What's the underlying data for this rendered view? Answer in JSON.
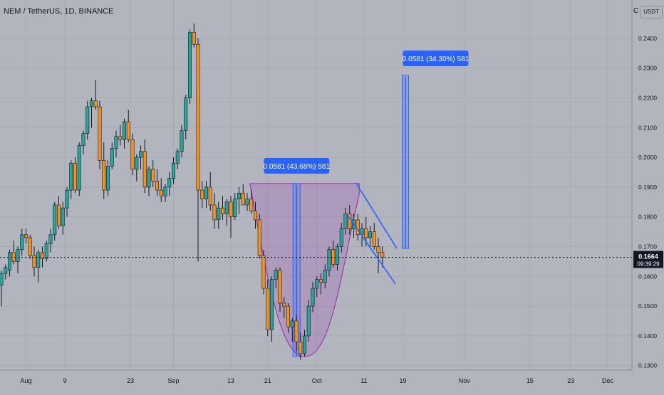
{
  "header": {
    "symbol_title": "NEM / TetherUS, 1D, BINANCE",
    "currency": "USDT"
  },
  "chart_data": {
    "type": "candlestick",
    "title": "NEM / TetherUS, 1D, BINANCE",
    "y_ticks": [
      "0.2400",
      "0.2300",
      "0.2200",
      "0.2100",
      "0.2000",
      "0.1900",
      "0.1800",
      "0.1700",
      "0.1600",
      "0.1500",
      "0.1400",
      "0.1300"
    ],
    "x_ticks": [
      "Aug",
      "9",
      "23",
      "Sep",
      "13",
      "21",
      "Oct",
      "11",
      "19",
      "Nov",
      "15",
      "23",
      "Dec"
    ],
    "ylim": [
      0.1285,
      0.2505
    ],
    "current_price": "0.1664",
    "countdown": "09:39:29",
    "colors": {
      "up": "#26a69a",
      "down": "#f7931a",
      "measure": "#2962ff",
      "pattern": "#9c27b0",
      "wedge": "#2962ff"
    },
    "candles": [
      [
        0.157,
        0.162,
        0.15,
        0.161
      ],
      [
        0.161,
        0.164,
        0.159,
        0.163
      ],
      [
        0.162,
        0.169,
        0.16,
        0.168
      ],
      [
        0.168,
        0.172,
        0.164,
        0.165
      ],
      [
        0.165,
        0.17,
        0.161,
        0.169
      ],
      [
        0.169,
        0.176,
        0.167,
        0.174
      ],
      [
        0.174,
        0.176,
        0.171,
        0.173
      ],
      [
        0.173,
        0.174,
        0.166,
        0.167
      ],
      [
        0.167,
        0.17,
        0.16,
        0.163
      ],
      [
        0.163,
        0.169,
        0.158,
        0.168
      ],
      [
        0.168,
        0.17,
        0.163,
        0.166
      ],
      [
        0.166,
        0.172,
        0.165,
        0.171
      ],
      [
        0.171,
        0.176,
        0.168,
        0.174
      ],
      [
        0.174,
        0.185,
        0.172,
        0.184
      ],
      [
        0.184,
        0.187,
        0.176,
        0.177
      ],
      [
        0.177,
        0.185,
        0.174,
        0.183
      ],
      [
        0.183,
        0.19,
        0.18,
        0.189
      ],
      [
        0.189,
        0.199,
        0.186,
        0.198
      ],
      [
        0.198,
        0.2,
        0.188,
        0.189
      ],
      [
        0.189,
        0.205,
        0.187,
        0.204
      ],
      [
        0.204,
        0.209,
        0.201,
        0.208
      ],
      [
        0.208,
        0.219,
        0.206,
        0.217
      ],
      [
        0.217,
        0.22,
        0.21,
        0.219
      ],
      [
        0.219,
        0.226,
        0.216,
        0.217
      ],
      [
        0.217,
        0.219,
        0.196,
        0.199
      ],
      [
        0.199,
        0.205,
        0.186,
        0.189
      ],
      [
        0.189,
        0.199,
        0.187,
        0.197
      ],
      [
        0.197,
        0.205,
        0.196,
        0.203
      ],
      [
        0.203,
        0.209,
        0.2,
        0.207
      ],
      [
        0.207,
        0.211,
        0.204,
        0.206
      ],
      [
        0.206,
        0.213,
        0.203,
        0.212
      ],
      [
        0.212,
        0.216,
        0.205,
        0.206
      ],
      [
        0.206,
        0.208,
        0.194,
        0.196
      ],
      [
        0.196,
        0.201,
        0.192,
        0.2
      ],
      [
        0.2,
        0.204,
        0.196,
        0.202
      ],
      [
        0.202,
        0.206,
        0.188,
        0.19
      ],
      [
        0.19,
        0.197,
        0.187,
        0.196
      ],
      [
        0.196,
        0.199,
        0.19,
        0.192
      ],
      [
        0.192,
        0.196,
        0.187,
        0.189
      ],
      [
        0.189,
        0.193,
        0.185,
        0.187
      ],
      [
        0.187,
        0.191,
        0.185,
        0.19
      ],
      [
        0.19,
        0.195,
        0.187,
        0.193
      ],
      [
        0.193,
        0.2,
        0.191,
        0.198
      ],
      [
        0.198,
        0.203,
        0.196,
        0.202
      ],
      [
        0.202,
        0.211,
        0.2,
        0.209
      ],
      [
        0.209,
        0.221,
        0.206,
        0.22
      ],
      [
        0.22,
        0.243,
        0.218,
        0.242
      ],
      [
        0.242,
        0.245,
        0.237,
        0.238
      ],
      [
        0.238,
        0.24,
        0.165,
        0.189
      ],
      [
        0.189,
        0.192,
        0.183,
        0.186
      ],
      [
        0.186,
        0.192,
        0.183,
        0.19
      ],
      [
        0.19,
        0.195,
        0.182,
        0.184
      ],
      [
        0.184,
        0.188,
        0.176,
        0.179
      ],
      [
        0.179,
        0.185,
        0.176,
        0.183
      ],
      [
        0.183,
        0.187,
        0.179,
        0.181
      ],
      [
        0.181,
        0.186,
        0.177,
        0.185
      ],
      [
        0.185,
        0.187,
        0.173,
        0.18
      ],
      [
        0.18,
        0.188,
        0.179,
        0.186
      ],
      [
        0.186,
        0.19,
        0.181,
        0.188
      ],
      [
        0.188,
        0.191,
        0.184,
        0.184
      ],
      [
        0.184,
        0.188,
        0.182,
        0.186
      ],
      [
        0.186,
        0.189,
        0.181,
        0.182
      ],
      [
        0.182,
        0.185,
        0.176,
        0.179
      ],
      [
        0.179,
        0.181,
        0.166,
        0.167
      ],
      [
        0.167,
        0.169,
        0.154,
        0.156
      ],
      [
        0.156,
        0.159,
        0.14,
        0.142
      ],
      [
        0.142,
        0.16,
        0.138,
        0.159
      ],
      [
        0.159,
        0.163,
        0.156,
        0.162
      ],
      [
        0.162,
        0.163,
        0.148,
        0.151
      ],
      [
        0.151,
        0.153,
        0.146,
        0.15
      ],
      [
        0.15,
        0.151,
        0.141,
        0.143
      ],
      [
        0.143,
        0.146,
        0.138,
        0.145
      ],
      [
        0.145,
        0.147,
        0.135,
        0.138
      ],
      [
        0.138,
        0.141,
        0.132,
        0.134
      ],
      [
        0.134,
        0.142,
        0.133,
        0.14
      ],
      [
        0.14,
        0.152,
        0.138,
        0.15
      ],
      [
        0.15,
        0.158,
        0.148,
        0.156
      ],
      [
        0.156,
        0.16,
        0.153,
        0.159
      ],
      [
        0.159,
        0.161,
        0.154,
        0.158
      ],
      [
        0.158,
        0.164,
        0.156,
        0.162
      ],
      [
        0.162,
        0.17,
        0.16,
        0.169
      ],
      [
        0.169,
        0.172,
        0.163,
        0.164
      ],
      [
        0.164,
        0.171,
        0.162,
        0.17
      ],
      [
        0.17,
        0.178,
        0.168,
        0.176
      ],
      [
        0.176,
        0.183,
        0.174,
        0.181
      ],
      [
        0.181,
        0.184,
        0.174,
        0.176
      ],
      [
        0.176,
        0.181,
        0.173,
        0.179
      ],
      [
        0.179,
        0.181,
        0.172,
        0.174
      ],
      [
        0.174,
        0.178,
        0.17,
        0.176
      ],
      [
        0.176,
        0.18,
        0.17,
        0.173
      ],
      [
        0.173,
        0.177,
        0.17,
        0.175
      ],
      [
        0.175,
        0.178,
        0.169,
        0.17
      ],
      [
        0.17,
        0.173,
        0.161,
        0.168
      ],
      [
        0.168,
        0.17,
        0.163,
        0.1664
      ]
    ],
    "measurements": [
      {
        "label": "0.0581 (43.68%) 581",
        "from": 0.1331,
        "to": 0.1912
      },
      {
        "label": "0.0581 (34.30%) 581",
        "from": 0.1694,
        "to": 0.2275
      }
    ],
    "cup_pattern": {
      "rim": 0.1912,
      "bottom": 0.1331
    },
    "wedge": {
      "upper": [
        0.1915,
        0.1694
      ],
      "lower": [
        0.1805,
        0.1575
      ]
    }
  }
}
